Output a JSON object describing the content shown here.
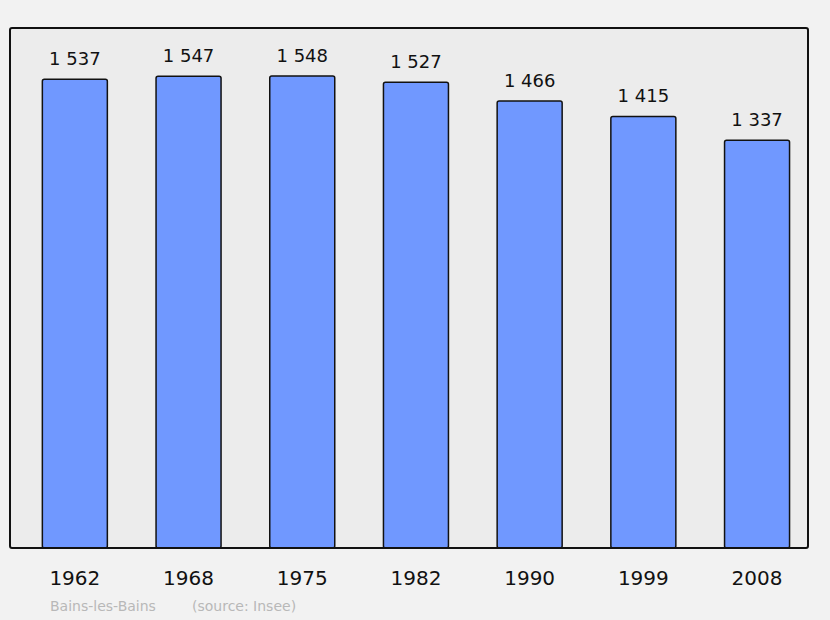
{
  "chart_data": {
    "type": "bar",
    "title": "Bains-les-Bains",
    "subtitle": "(source: Insee)",
    "categories": [
      "1962",
      "1968",
      "1975",
      "1982",
      "1990",
      "1999",
      "2008"
    ],
    "values": [
      1537,
      1547,
      1548,
      1527,
      1466,
      1415,
      1337
    ],
    "value_labels": [
      "1 537",
      "1 547",
      "1 548",
      "1 527",
      "1 466",
      "1 415",
      "1 337"
    ],
    "color": "#7098ff",
    "ylim": [
      0,
      1705
    ],
    "grid": false,
    "data_labels": true,
    "tick_labels": "x"
  }
}
